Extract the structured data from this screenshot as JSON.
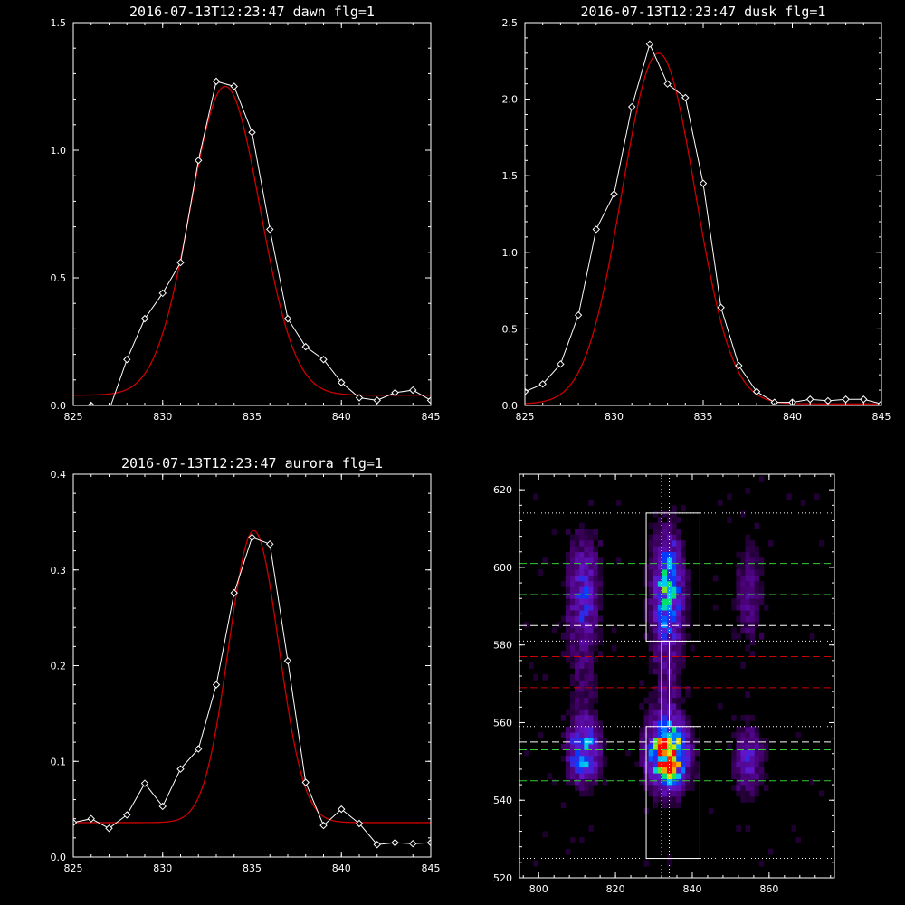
{
  "colors": {
    "background": "#000000",
    "data": "#ffffff",
    "fit": "#cc0000",
    "axis": "#ffffff"
  },
  "chart_data": [
    {
      "type": "line",
      "title": "2016-07-13T12:23:47 dawn flg=1",
      "xlabel": "",
      "ylabel": "",
      "xlim": [
        825,
        845
      ],
      "ylim": [
        0,
        1.5
      ],
      "xticks": [
        "825",
        "830",
        "835",
        "840",
        "845"
      ],
      "yticks": [
        "0.0",
        "0.5",
        "1.0",
        "1.5"
      ],
      "series": [
        {
          "style": "data",
          "x": [
            826,
            827,
            828,
            829,
            830,
            831,
            832,
            833,
            834,
            835,
            836,
            837,
            838,
            839,
            840,
            841,
            842,
            843,
            844,
            845
          ],
          "y": [
            0.0,
            -0.02,
            0.18,
            0.34,
            0.44,
            0.56,
            0.96,
            1.27,
            1.25,
            1.07,
            0.69,
            0.34,
            0.23,
            0.18,
            0.09,
            0.03,
            0.02,
            0.05,
            0.06,
            0.02
          ]
        },
        {
          "style": "fit",
          "model": "gaussian",
          "amplitude": 1.21,
          "center": 833.5,
          "sigma": 1.95,
          "baseline": 0.04
        }
      ]
    },
    {
      "type": "line",
      "title": "2016-07-13T12:23:47 dusk flg=1",
      "xlabel": "",
      "ylabel": "",
      "xlim": [
        825,
        845
      ],
      "ylim": [
        0,
        2.5
      ],
      "xticks": [
        "825",
        "830",
        "835",
        "840",
        "845"
      ],
      "yticks": [
        "0.0",
        "0.5",
        "1.0",
        "1.5",
        "2.0",
        "2.5"
      ],
      "series": [
        {
          "style": "data",
          "x": [
            825,
            826,
            827,
            828,
            829,
            830,
            831,
            832,
            833,
            834,
            835,
            836,
            837,
            838,
            839,
            840,
            841,
            842,
            843,
            844,
            845
          ],
          "y": [
            0.09,
            0.14,
            0.27,
            0.59,
            1.15,
            1.38,
            1.95,
            2.36,
            2.1,
            2.01,
            1.45,
            0.64,
            0.26,
            0.09,
            0.02,
            0.02,
            0.04,
            0.03,
            0.04,
            0.04,
            0.01
          ]
        },
        {
          "style": "fit",
          "model": "gaussian",
          "amplitude": 2.29,
          "center": 832.5,
          "sigma": 2.05,
          "baseline": 0.01
        }
      ]
    },
    {
      "type": "line",
      "title": "2016-07-13T12:23:47 aurora flg=1",
      "xlabel": "",
      "ylabel": "",
      "xlim": [
        825,
        845
      ],
      "ylim": [
        0,
        0.4
      ],
      "xticks": [
        "825",
        "830",
        "835",
        "840",
        "845"
      ],
      "yticks": [
        "0.0",
        "0.1",
        "0.2",
        "0.3",
        "0.4"
      ],
      "series": [
        {
          "style": "data",
          "x": [
            825,
            826,
            827,
            828,
            829,
            830,
            831,
            832,
            833,
            834,
            835,
            836,
            837,
            838,
            839,
            840,
            841,
            842,
            843,
            844,
            845
          ],
          "y": [
            0.036,
            0.04,
            0.03,
            0.044,
            0.077,
            0.053,
            0.092,
            0.113,
            0.18,
            0.276,
            0.334,
            0.327,
            0.205,
            0.078,
            0.033,
            0.05,
            0.035,
            0.013,
            0.015,
            0.014,
            0.015
          ]
        },
        {
          "style": "fit",
          "model": "gaussian",
          "amplitude": 0.305,
          "center": 835.1,
          "sigma": 1.4,
          "baseline": 0.036
        }
      ]
    },
    {
      "type": "heatmap",
      "title": "",
      "xlabel": "",
      "ylabel": "",
      "xlim": [
        795,
        877
      ],
      "ylim": [
        520,
        624
      ],
      "xticks": [
        "800",
        "820",
        "840",
        "860"
      ],
      "yticks": [
        "520",
        "540",
        "560",
        "580",
        "600",
        "620"
      ],
      "emission_blobs": [
        {
          "x": 811,
          "y": 552,
          "sx": 2.6,
          "sy": 5,
          "level": 0.55
        },
        {
          "x": 811,
          "y": 593,
          "sx": 2.6,
          "sy": 9,
          "level": 0.32
        },
        {
          "x": 833,
          "y": 551,
          "sx": 3.2,
          "sy": 5.5,
          "level": 1.0
        },
        {
          "x": 833,
          "y": 594,
          "sx": 2.6,
          "sy": 9,
          "level": 0.55
        },
        {
          "x": 833,
          "y": 572,
          "sx": 2.6,
          "sy": 12,
          "level": 0.14
        },
        {
          "x": 854,
          "y": 550,
          "sx": 2.6,
          "sy": 6,
          "level": 0.26
        },
        {
          "x": 854,
          "y": 592,
          "sx": 2.4,
          "sy": 9,
          "level": 0.16
        },
        {
          "x": 811,
          "y": 572,
          "sx": 2.4,
          "sy": 12,
          "level": 0.1
        }
      ],
      "boxes": [
        {
          "x0": 828,
          "x1": 842,
          "y0": 581,
          "y1": 614
        },
        {
          "x0": 828,
          "x1": 842,
          "y0": 525,
          "y1": 559
        },
        {
          "x0": 832,
          "x1": 834,
          "y0": 559,
          "y1": 581
        }
      ],
      "hlines": [
        {
          "y": 614,
          "style": "dotted",
          "color": "#ffffff"
        },
        {
          "y": 601,
          "style": "dashed",
          "color": "#33cc33"
        },
        {
          "y": 593,
          "style": "dashed",
          "color": "#33cc33"
        },
        {
          "y": 585,
          "style": "dashed",
          "color": "#ffffff"
        },
        {
          "y": 581,
          "style": "dotted",
          "color": "#ffffff"
        },
        {
          "y": 577,
          "style": "dashed",
          "color": "#cc0000"
        },
        {
          "y": 569,
          "style": "dashed",
          "color": "#cc0000"
        },
        {
          "y": 559,
          "style": "dotted",
          "color": "#ffffff"
        },
        {
          "y": 555,
          "style": "dashed",
          "color": "#ffffff"
        },
        {
          "y": 553,
          "style": "dashed",
          "color": "#33cc33"
        },
        {
          "y": 545,
          "style": "dashed",
          "color": "#33cc33"
        },
        {
          "y": 525,
          "style": "dotted",
          "color": "#ffffff"
        }
      ],
      "vlines": [
        {
          "x": 832,
          "style": "dotted",
          "color": "#ffffff"
        },
        {
          "x": 834,
          "style": "dotted",
          "color": "#ffffff"
        }
      ]
    }
  ]
}
